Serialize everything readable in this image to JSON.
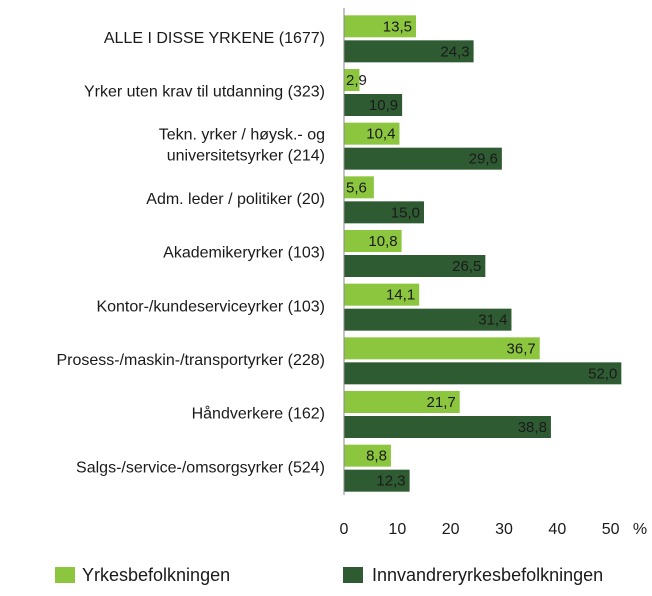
{
  "chart_data": {
    "type": "bar",
    "orientation": "horizontal",
    "categories": [
      "ALLE I DISSE YRKENE (1677)",
      "Yrker uten krav til utdanning (323)",
      "Tekn. yrker / høysk.- og\nuniversitetsyrker (214)",
      "Adm. leder / politiker (20)",
      "Akademikeryrker (103)",
      "Kontor-/kundeserviceyrker (103)",
      "Prosess-/maskin-/transportyrker (228)",
      "Håndverkere (162)",
      "Salgs-/service-/omsorgsyrker (524)"
    ],
    "series": [
      {
        "name": "Yrkesbefolkningen",
        "color": "#8cc63f",
        "label_color": "#1a1a1a",
        "values": [
          13.5,
          2.9,
          10.4,
          5.6,
          10.8,
          14.1,
          36.7,
          21.7,
          8.8
        ],
        "value_labels": [
          "13,5",
          "2,9",
          "10,4",
          "5,6",
          "10,8",
          "14,1",
          "36,7",
          "21,7",
          "8,8"
        ]
      },
      {
        "name": "Innvandreryrkesbefolkningen",
        "color": "#2f5b33",
        "label_color": "#ffffff",
        "values": [
          24.3,
          10.9,
          29.6,
          15.0,
          26.5,
          31.4,
          52.0,
          38.8,
          12.3
        ],
        "value_labels": [
          "24,3",
          "10,9",
          "29,6",
          "15,0",
          "26,5",
          "31,4",
          "52,0",
          "38,8",
          "12,3"
        ]
      }
    ],
    "xlabel": "%",
    "xlim": [
      0,
      52.5
    ],
    "xticks": [
      0,
      10,
      20,
      30,
      40,
      50
    ],
    "grid": false,
    "legend": "bottom"
  }
}
